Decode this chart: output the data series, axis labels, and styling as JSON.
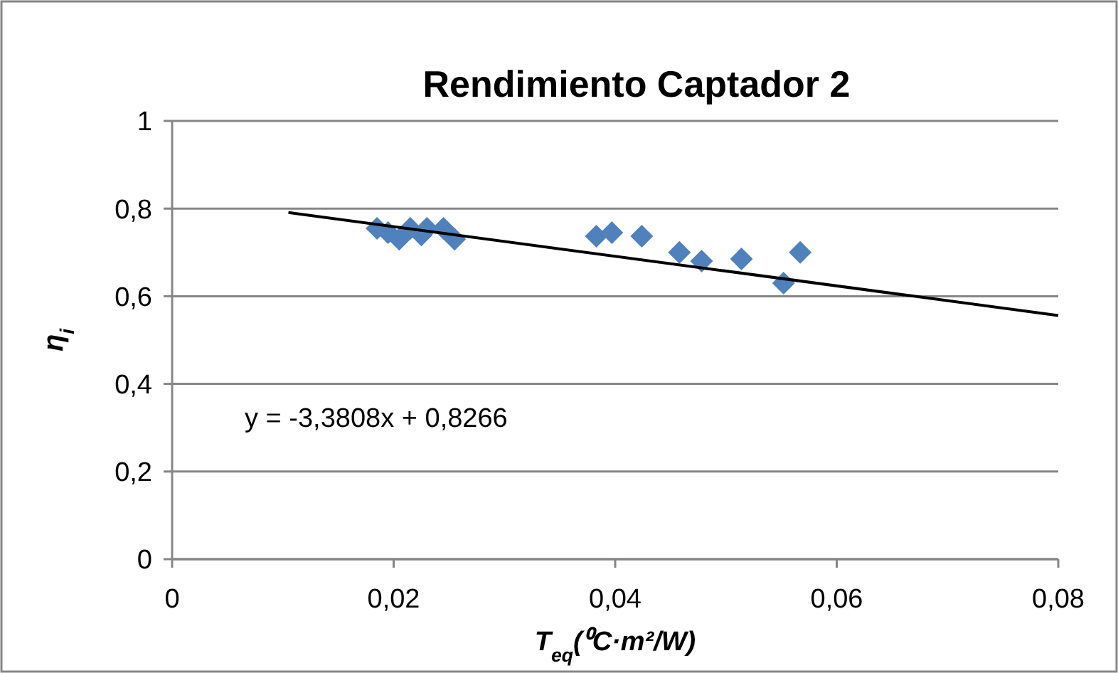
{
  "chart_data": {
    "type": "scatter",
    "title": "Rendimiento  Captador 2",
    "xlabel": "T$_{eq}$(⁰C·m²/W)",
    "ylabel": "η$_{i}$",
    "xlim": [
      0,
      0.08
    ],
    "ylim": [
      0,
      1
    ],
    "xticks": [
      0,
      {
        "value": 0.02,
        "label": "0,02"
      },
      {
        "value": 0.04,
        "label": "0,04"
      },
      {
        "value": 0.06,
        "label": "0,06"
      },
      {
        "value": 0.08,
        "label": "0,08"
      }
    ],
    "yticks": [
      0,
      {
        "value": 0.2,
        "label": "0,2"
      },
      {
        "value": 0.4,
        "label": "0,4"
      },
      {
        "value": 0.6,
        "label": "0,6"
      },
      {
        "value": 0.8,
        "label": "0,8"
      },
      1
    ],
    "grid": "y",
    "marker": "diamond",
    "series": [
      {
        "color": "#4f81bd",
        "x": [
          0.0185,
          0.0195,
          0.0205,
          0.0215,
          0.0225,
          0.023,
          0.0245,
          0.0255,
          0.0383,
          0.0397,
          0.0424,
          0.0458,
          0.0478,
          0.0514,
          0.0552,
          0.0567
        ],
        "values": [
          0.755,
          0.745,
          0.73,
          0.755,
          0.74,
          0.755,
          0.755,
          0.73,
          0.737,
          0.745,
          0.737,
          0.7,
          0.68,
          0.685,
          0.63,
          0.7
        ]
      },
      {
        "type": "line",
        "color": "#000000",
        "marker": "none",
        "x": [
          0.0105,
          0.08
        ],
        "values": [
          0.791,
          0.556
        ]
      }
    ],
    "annotations": [
      "y = -3,3808x + 0,8266"
    ]
  }
}
